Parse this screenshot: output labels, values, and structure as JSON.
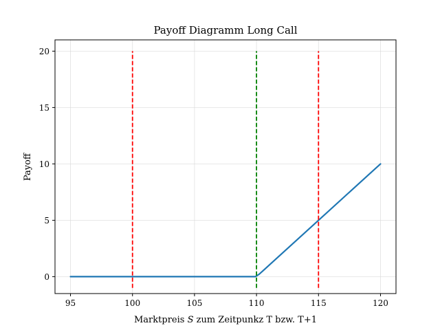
{
  "chart_data": {
    "type": "line",
    "title": "Payoff Diagramm Long Call",
    "xlabel_prefix": "Marktpreis ",
    "xlabel_symbol": "S",
    "xlabel_suffix": " zum Zeitpunkz T bzw. T+1",
    "ylabel": "Payoff",
    "xlim": [
      93.75,
      121.25
    ],
    "ylim": [
      -1.5,
      21
    ],
    "xticks": [
      95,
      100,
      105,
      110,
      115,
      120
    ],
    "yticks": [
      0,
      5,
      10,
      15,
      20
    ],
    "grid": true,
    "series": [
      {
        "color": "#1f77b4",
        "x": [
          95,
          100,
          105,
          109.9,
          110.2,
          115,
          120
        ],
        "y": [
          0,
          0,
          0,
          0,
          0.2,
          5,
          10
        ]
      }
    ],
    "vlines": [
      {
        "x": 100,
        "y_from": -1,
        "y_to": 20,
        "color": "#ff0000",
        "style": "dashed"
      },
      {
        "x": 110,
        "y_from": -1,
        "y_to": 20,
        "color": "#008000",
        "style": "dashed"
      },
      {
        "x": 115,
        "y_from": -1,
        "y_to": 20,
        "color": "#ff0000",
        "style": "dashed"
      }
    ]
  }
}
